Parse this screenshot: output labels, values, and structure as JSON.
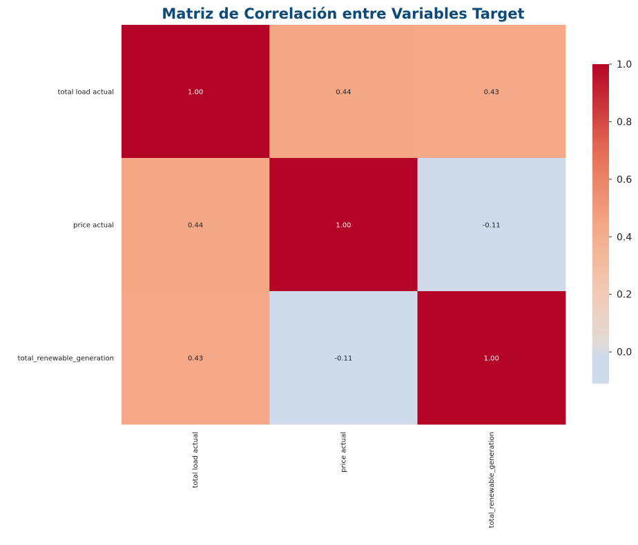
{
  "chart_data": {
    "type": "heatmap",
    "title": "Matriz de Correlación entre Variables Target",
    "rows": [
      "total load actual",
      "price actual",
      "total_renewable_generation"
    ],
    "cols": [
      "total load actual",
      "price actual",
      "total_renewable_generation"
    ],
    "values": [
      [
        1.0,
        0.44,
        0.43
      ],
      [
        0.44,
        1.0,
        -0.11
      ],
      [
        0.43,
        -0.11,
        1.0
      ]
    ],
    "cell_labels": [
      [
        "1.00",
        "0.44",
        "0.43"
      ],
      [
        "0.44",
        "1.00",
        "-0.11"
      ],
      [
        "0.43",
        "-0.11",
        "1.00"
      ]
    ],
    "colorbar": {
      "range": [
        -0.11,
        1.0
      ],
      "ticks": [
        "0.0",
        "0.2",
        "0.4",
        "0.6",
        "0.8",
        "1.0"
      ],
      "colormap": "coolwarm-diverging",
      "center": 0
    },
    "colors": {
      "high": "#b40426",
      "mid_positive": "#f5a886",
      "low": "#cfdaeb",
      "title": "#0d4a78"
    }
  }
}
